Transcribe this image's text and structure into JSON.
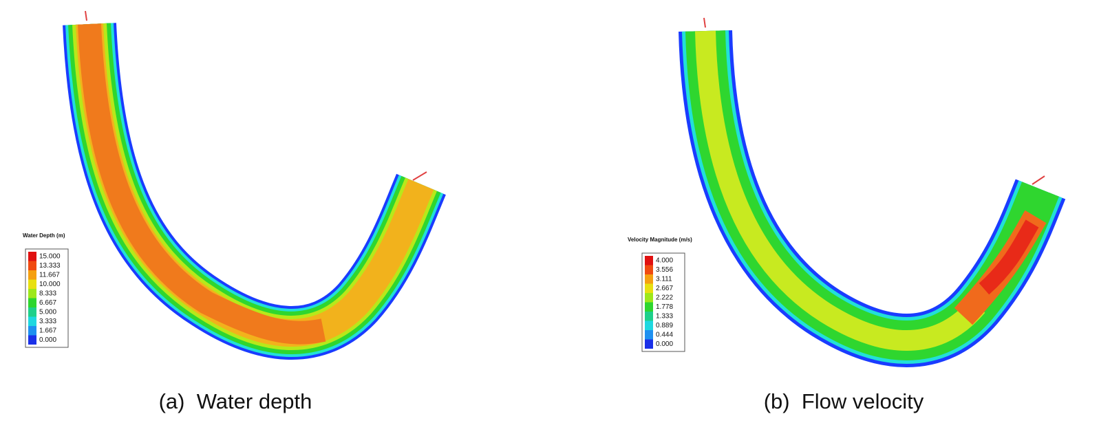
{
  "panels": [
    {
      "legend": {
        "title": "Water Depth (m)",
        "labels": [
          "15.000",
          "13.333",
          "11.667",
          "10.000",
          "8.333",
          "6.667",
          "5.000",
          "3.333",
          "1.667",
          "0.000"
        ]
      },
      "caption": "(a)  Water depth"
    },
    {
      "legend": {
        "title": "Velocity Magnitude (m/s)",
        "labels": [
          "4.000",
          "3.556",
          "3.111",
          "2.667",
          "2.222",
          "1.778",
          "1.333",
          "0.889",
          "0.444",
          "0.000"
        ]
      },
      "caption": "(b)  Flow velocity"
    }
  ]
}
